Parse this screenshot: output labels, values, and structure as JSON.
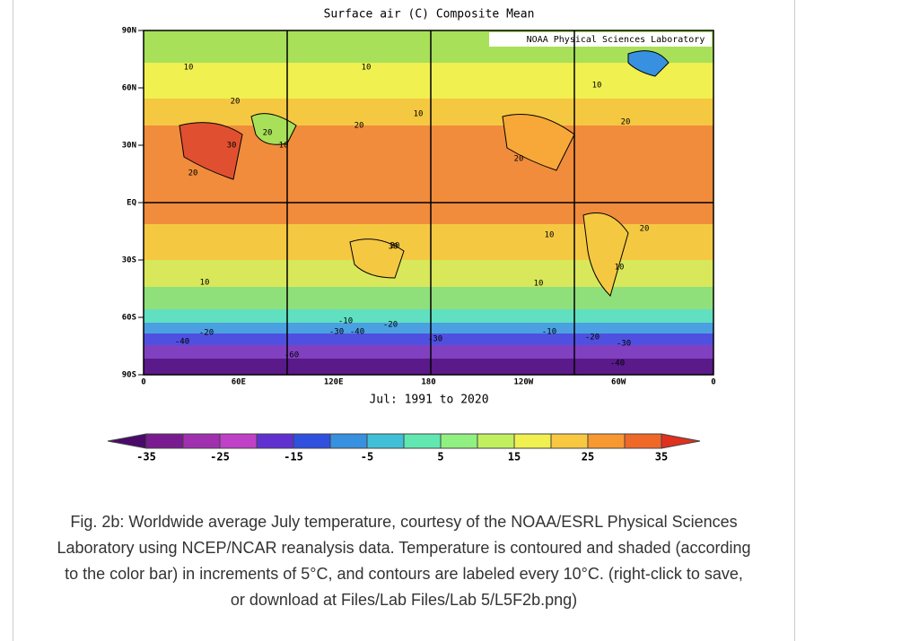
{
  "figure": {
    "title": "Surface air (C) Composite Mean",
    "credit": "NOAA Physical Sciences Laboratory",
    "period": "Jul: 1991 to 2020",
    "lat_labels": [
      "90N",
      "60N",
      "30N",
      "EQ",
      "30S",
      "60S",
      "90S"
    ],
    "lon_labels": [
      "0",
      "60E",
      "120E",
      "180",
      "120W",
      "60W",
      "0"
    ],
    "contour_labels": [
      "10",
      "10",
      "20",
      "20",
      "30",
      "10",
      "20",
      "10",
      "30",
      "20",
      "10",
      "20",
      "10",
      "20",
      "20",
      "20",
      "-20",
      "-40",
      "-10",
      "-30",
      "-40",
      "-20",
      "-30",
      "-60",
      "-10",
      "-20",
      "-30",
      "-40",
      "10",
      "10",
      "10"
    ],
    "colorbar": {
      "lim": [
        -35,
        35
      ],
      "ticks": [
        -35,
        -25,
        -15,
        -5,
        5,
        15,
        25,
        35
      ],
      "colors": [
        "#4a0a6a",
        "#7a1a90",
        "#a030b0",
        "#c040c8",
        "#6030d0",
        "#3050e0",
        "#3890e0",
        "#40c0d8",
        "#60e8b0",
        "#90f080",
        "#c0f060",
        "#f0f050",
        "#f8c840",
        "#f89830",
        "#f06828",
        "#e03020"
      ]
    }
  },
  "caption": [
    "Fig. 2b: Worldwide average July temperature, courtesy of the NOAA/ESRL Physical Sciences",
    "Laboratory using NCEP/NCAR reanalysis data. Temperature is contoured and shaded (according",
    "to the color bar) in increments of 5°C, and contours are labeled every 10°C. (right-click to save,",
    "or download at Files/Lab Files/Lab 5/L5F2b.png)"
  ]
}
